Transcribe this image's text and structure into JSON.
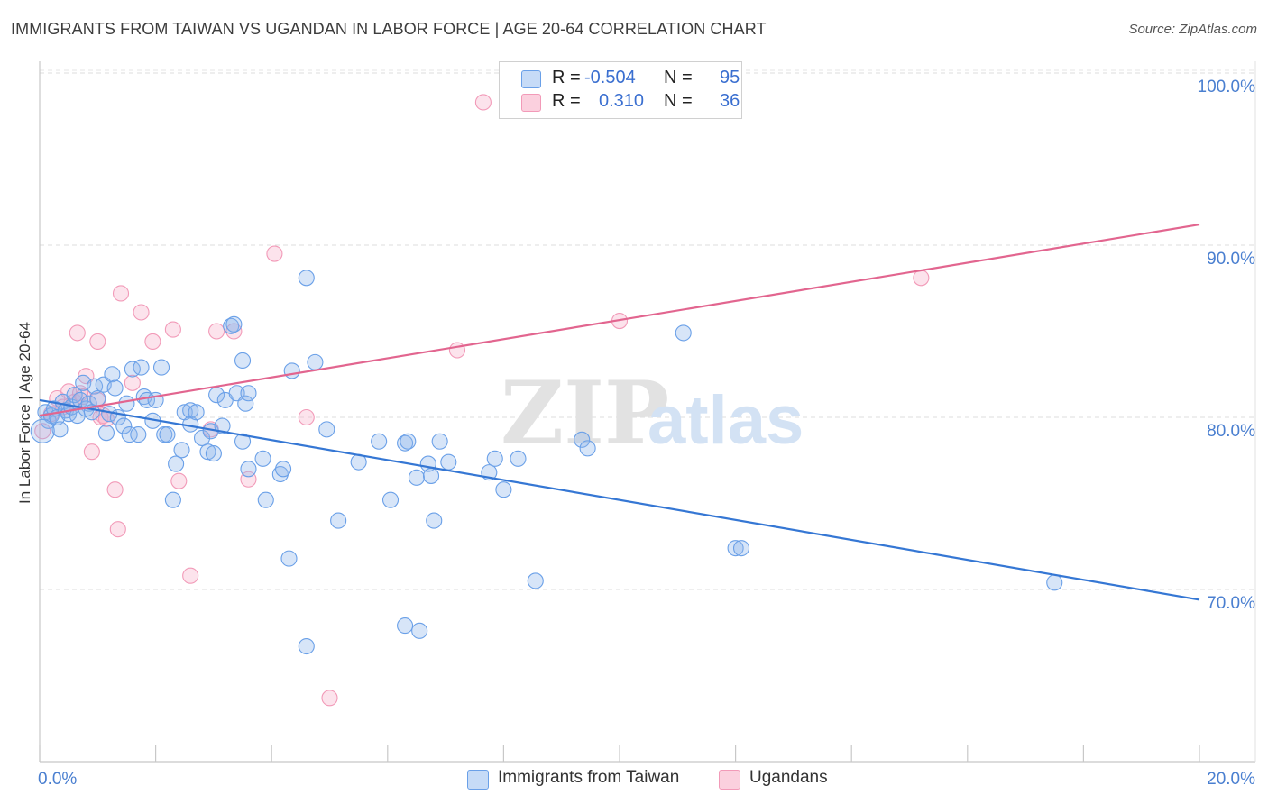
{
  "title": "IMMIGRANTS FROM TAIWAN VS UGANDAN IN LABOR FORCE | AGE 20-64 CORRELATION CHART",
  "source": "Source: ZipAtlas.com",
  "watermark": {
    "zip": "ZIP",
    "atlas": "atlas"
  },
  "legend": {
    "r_label": "R =",
    "n_label": "N =",
    "series": [
      {
        "r": "-0.504",
        "n": "95"
      },
      {
        "r": "0.310",
        "n": "36"
      }
    ]
  },
  "chart_data": {
    "type": "scatter",
    "title": "IMMIGRANTS FROM TAIWAN VS UGANDAN IN LABOR FORCE | AGE 20-64 CORRELATION CHART",
    "xlabel": "",
    "ylabel": "In Labor Force | Age 20-64",
    "xlim": [
      0,
      20
    ],
    "ylim": [
      62,
      103
    ],
    "x_tick_labels": [
      "0.0%",
      "20.0%"
    ],
    "y_ticks": [
      70,
      80,
      90,
      100
    ],
    "y_tick_labels": [
      "70.0%",
      "80.0%",
      "90.0%",
      "100.0%"
    ],
    "grid": true,
    "colors": {
      "taiwan": "#6aa0e8",
      "uganda": "#f29ab8",
      "taiwan_line": "#3577d4",
      "uganda_line": "#e2658f",
      "tick": "#4a7fd0"
    },
    "series": [
      {
        "name": "Immigrants from Taiwan",
        "r": -0.504,
        "n": 95,
        "trend": {
          "x": [
            0,
            20
          ],
          "y": [
            81.0,
            69.4
          ]
        },
        "points": [
          [
            0.1,
            80.3
          ],
          [
            0.15,
            79.8
          ],
          [
            0.2,
            80.1
          ],
          [
            0.25,
            80.5
          ],
          [
            0.3,
            80.0
          ],
          [
            0.35,
            79.3
          ],
          [
            0.4,
            80.9
          ],
          [
            0.45,
            80.4
          ],
          [
            0.5,
            80.2
          ],
          [
            0.55,
            80.6
          ],
          [
            0.6,
            81.3
          ],
          [
            0.65,
            80.1
          ],
          [
            0.7,
            81.0
          ],
          [
            0.75,
            82.0
          ],
          [
            0.8,
            80.5
          ],
          [
            0.85,
            80.8
          ],
          [
            0.9,
            80.3
          ],
          [
            0.95,
            81.8
          ],
          [
            1.0,
            81.1
          ],
          [
            1.1,
            81.9
          ],
          [
            1.15,
            79.1
          ],
          [
            1.2,
            80.2
          ],
          [
            1.25,
            82.5
          ],
          [
            1.3,
            81.7
          ],
          [
            1.35,
            80.0
          ],
          [
            1.45,
            79.5
          ],
          [
            1.5,
            80.8
          ],
          [
            1.55,
            79.0
          ],
          [
            1.6,
            82.8
          ],
          [
            1.7,
            79.0
          ],
          [
            1.75,
            82.9
          ],
          [
            1.8,
            81.2
          ],
          [
            1.85,
            81.0
          ],
          [
            1.95,
            79.8
          ],
          [
            2.0,
            81.0
          ],
          [
            2.1,
            82.9
          ],
          [
            2.15,
            79.0
          ],
          [
            2.2,
            79.0
          ],
          [
            2.3,
            75.2
          ],
          [
            2.35,
            77.3
          ],
          [
            2.45,
            78.1
          ],
          [
            2.5,
            80.3
          ],
          [
            2.6,
            80.4
          ],
          [
            2.6,
            79.6
          ],
          [
            2.7,
            80.3
          ],
          [
            2.8,
            78.8
          ],
          [
            2.9,
            78.0
          ],
          [
            2.95,
            79.2
          ],
          [
            3.0,
            77.9
          ],
          [
            3.05,
            81.3
          ],
          [
            3.15,
            79.5
          ],
          [
            3.2,
            81.0
          ],
          [
            3.3,
            85.3
          ],
          [
            3.35,
            85.4
          ],
          [
            3.4,
            81.4
          ],
          [
            3.5,
            78.6
          ],
          [
            3.5,
            83.3
          ],
          [
            3.55,
            80.8
          ],
          [
            3.6,
            81.4
          ],
          [
            3.6,
            77.0
          ],
          [
            3.85,
            77.6
          ],
          [
            3.9,
            75.2
          ],
          [
            4.15,
            76.7
          ],
          [
            4.2,
            77.0
          ],
          [
            4.3,
            71.8
          ],
          [
            4.35,
            82.7
          ],
          [
            4.6,
            88.1
          ],
          [
            4.75,
            83.2
          ],
          [
            4.95,
            79.3
          ],
          [
            5.15,
            74.0
          ],
          [
            5.5,
            77.4
          ],
          [
            5.85,
            78.6
          ],
          [
            6.05,
            75.2
          ],
          [
            6.3,
            78.5
          ],
          [
            6.35,
            78.6
          ],
          [
            6.5,
            76.5
          ],
          [
            6.7,
            77.3
          ],
          [
            6.75,
            76.6
          ],
          [
            6.8,
            74.0
          ],
          [
            6.9,
            78.6
          ],
          [
            7.05,
            77.4
          ],
          [
            7.75,
            76.8
          ],
          [
            7.85,
            77.6
          ],
          [
            8.0,
            75.8
          ],
          [
            8.25,
            77.6
          ],
          [
            8.55,
            70.5
          ],
          [
            9.35,
            78.7
          ],
          [
            9.45,
            78.2
          ],
          [
            11.1,
            84.9
          ],
          [
            12.0,
            72.4
          ],
          [
            12.1,
            72.4
          ],
          [
            17.5,
            70.4
          ],
          [
            6.3,
            67.9
          ],
          [
            6.55,
            67.6
          ],
          [
            4.6,
            66.7
          ]
        ]
      },
      {
        "name": "Ugandans",
        "r": 0.31,
        "n": 36,
        "trend": {
          "x": [
            0,
            20
          ],
          "y": [
            80.1,
            91.2
          ]
        },
        "points": [
          [
            0.05,
            79.2
          ],
          [
            0.2,
            80.2
          ],
          [
            0.3,
            81.1
          ],
          [
            0.4,
            80.6
          ],
          [
            0.5,
            81.5
          ],
          [
            0.6,
            80.9
          ],
          [
            0.65,
            84.9
          ],
          [
            0.7,
            81.4
          ],
          [
            0.75,
            81.2
          ],
          [
            0.8,
            82.4
          ],
          [
            0.9,
            78.0
          ],
          [
            1.0,
            81.0
          ],
          [
            1.0,
            84.4
          ],
          [
            1.05,
            80.0
          ],
          [
            1.1,
            80.1
          ],
          [
            1.15,
            79.9
          ],
          [
            1.3,
            75.8
          ],
          [
            1.35,
            73.5
          ],
          [
            1.4,
            87.2
          ],
          [
            1.6,
            82.0
          ],
          [
            1.75,
            86.1
          ],
          [
            1.95,
            84.4
          ],
          [
            2.3,
            85.1
          ],
          [
            2.4,
            76.3
          ],
          [
            2.6,
            70.8
          ],
          [
            2.95,
            79.3
          ],
          [
            3.05,
            85.0
          ],
          [
            3.35,
            85.0
          ],
          [
            3.6,
            76.4
          ],
          [
            4.05,
            89.5
          ],
          [
            4.6,
            80.0
          ],
          [
            5.0,
            63.7
          ],
          [
            7.2,
            83.9
          ],
          [
            7.65,
            98.3
          ],
          [
            10.0,
            85.6
          ],
          [
            15.2,
            88.1
          ]
        ]
      }
    ]
  }
}
